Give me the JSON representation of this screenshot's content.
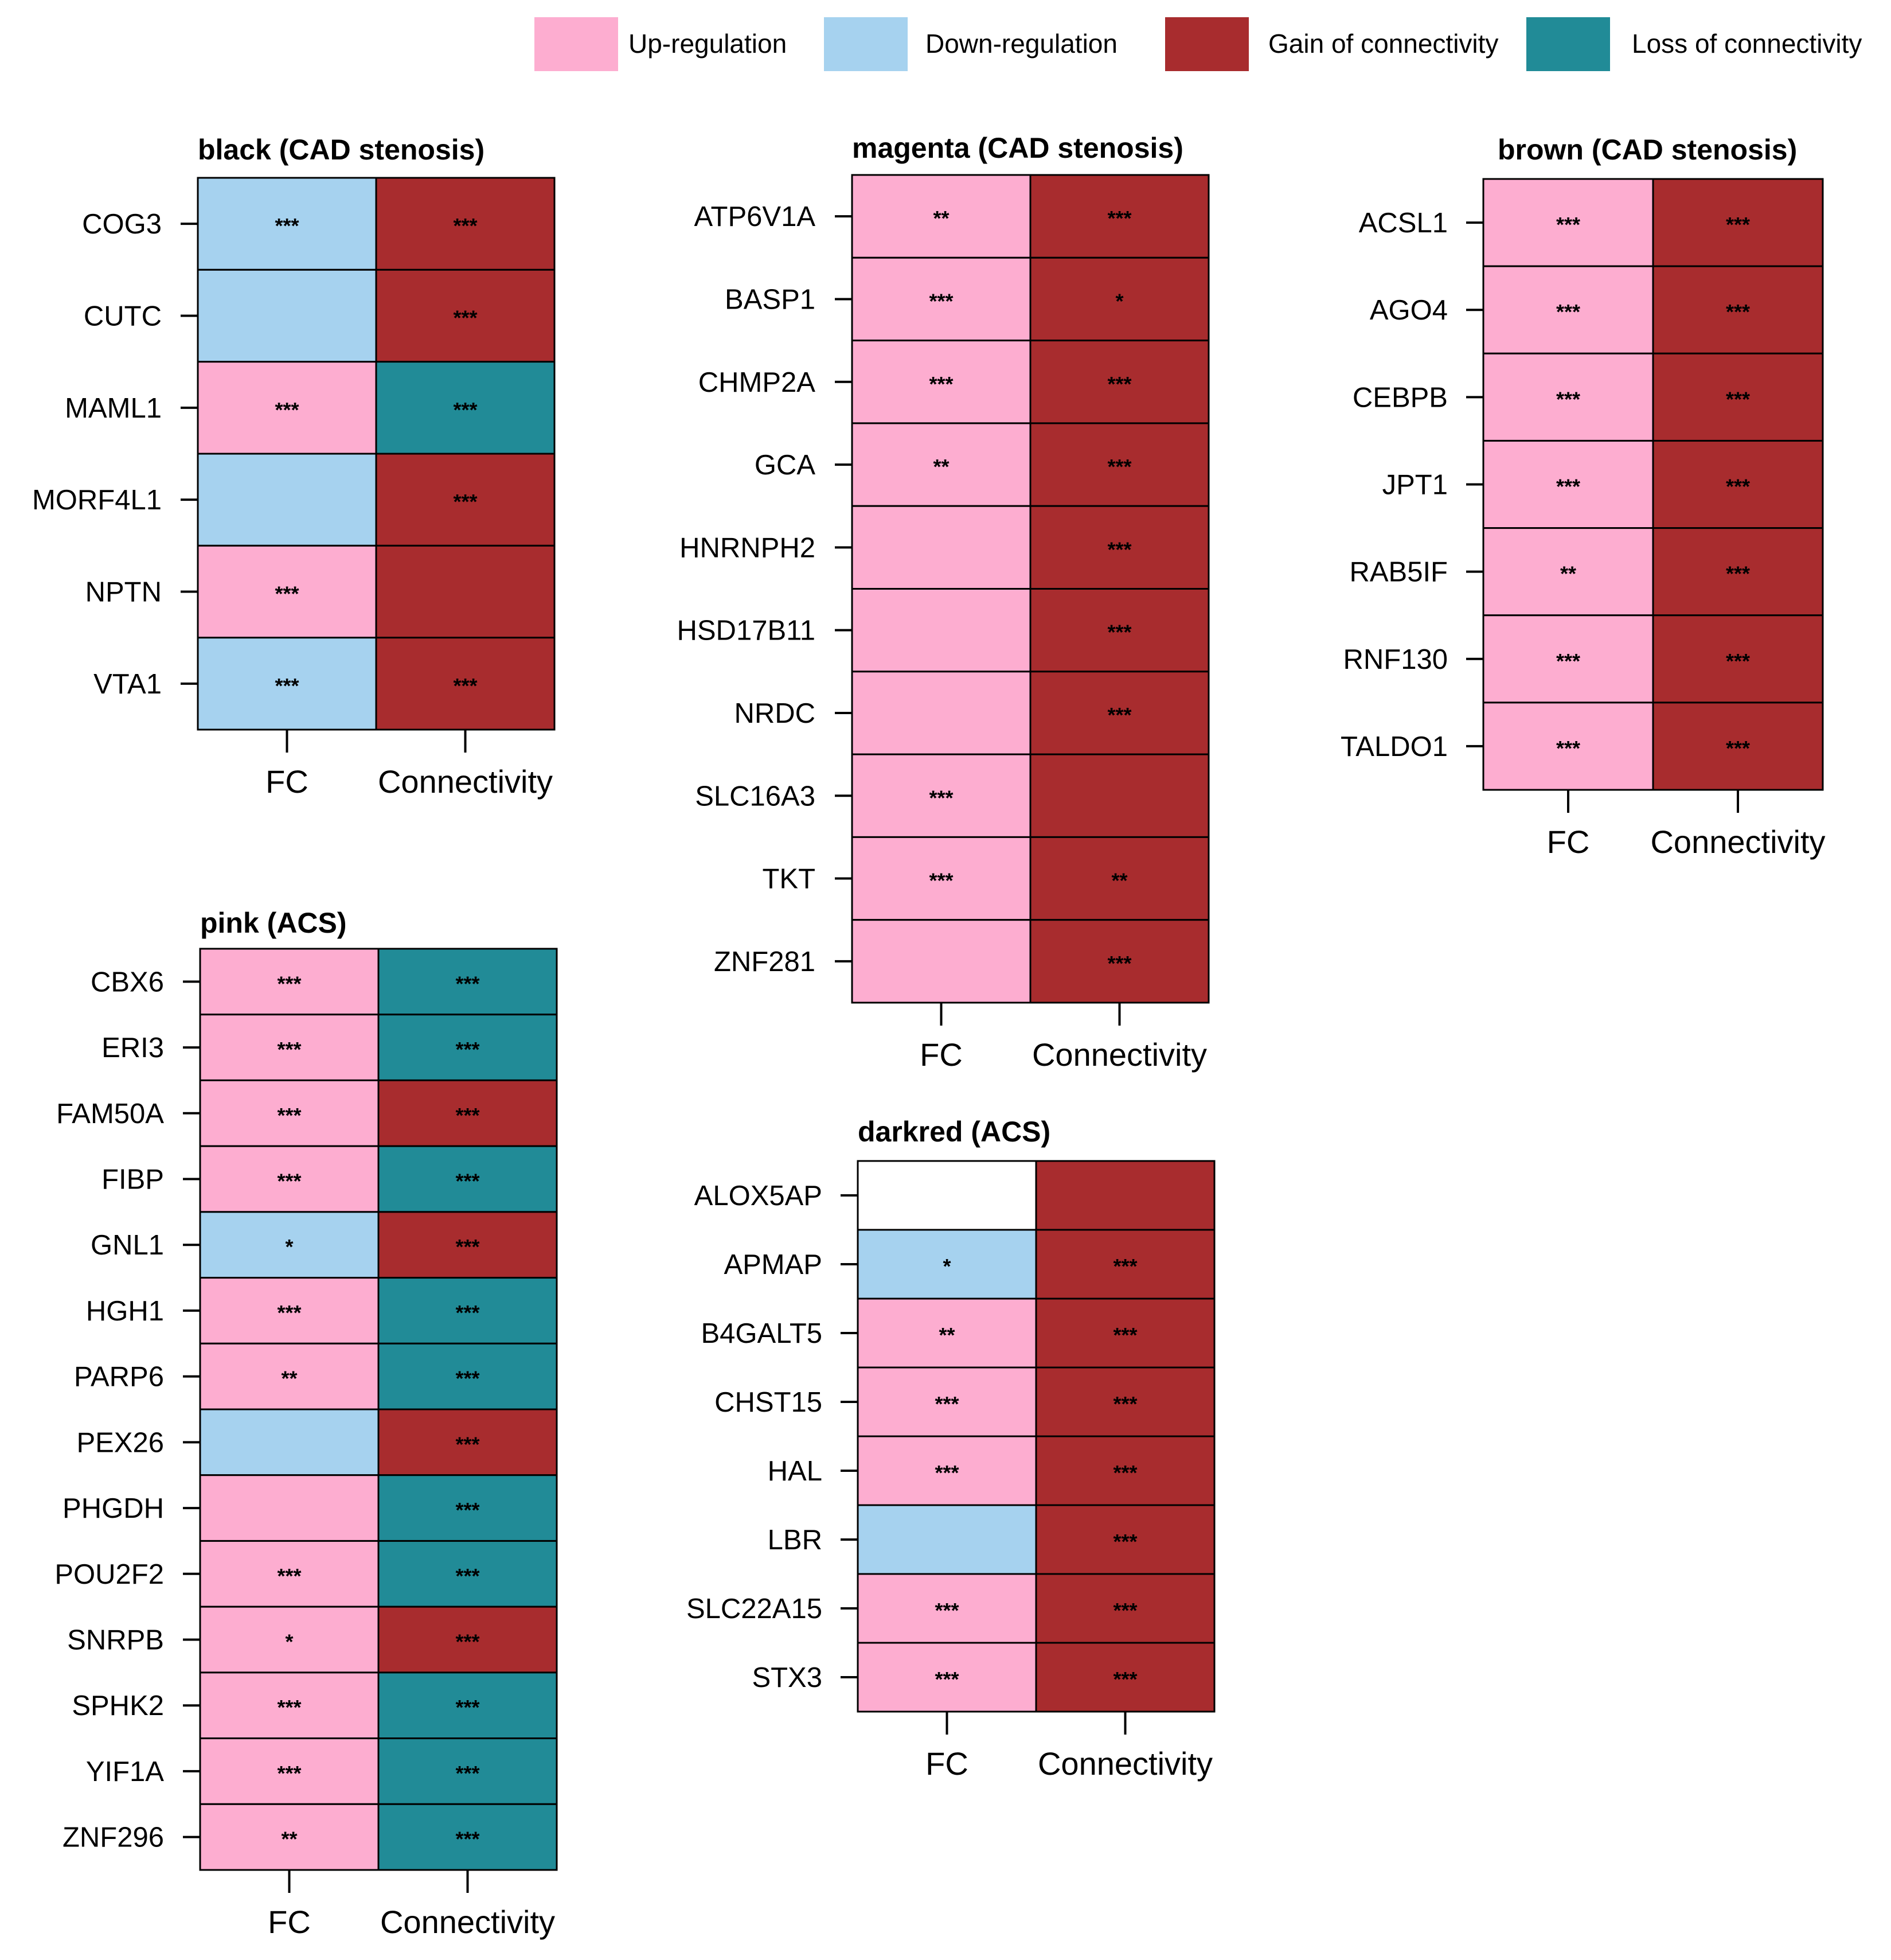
{
  "colors": {
    "up": "#fdadd0",
    "down": "#a6d2ef",
    "gain": "#a82c2e",
    "loss": "#218b97",
    "none": "#ffffff"
  },
  "legend": [
    {
      "label": "Up-regulation",
      "key": "up"
    },
    {
      "label": "Down-regulation",
      "key": "down"
    },
    {
      "label": "Gain of connectivity",
      "key": "gain"
    },
    {
      "label": "Loss of connectivity",
      "key": "loss"
    }
  ],
  "chart_data": [
    {
      "type": "heatmap",
      "title": "black (CAD stenosis)",
      "columns": [
        "FC",
        "Connectivity"
      ],
      "rows": [
        {
          "gene": "COG3",
          "fc": "down",
          "fc_sig": "***",
          "conn": "gain",
          "conn_sig": "***"
        },
        {
          "gene": "CUTC",
          "fc": "down",
          "fc_sig": "",
          "conn": "gain",
          "conn_sig": "***"
        },
        {
          "gene": "MAML1",
          "fc": "up",
          "fc_sig": "***",
          "conn": "loss",
          "conn_sig": "***"
        },
        {
          "gene": "MORF4L1",
          "fc": "down",
          "fc_sig": "",
          "conn": "gain",
          "conn_sig": "***"
        },
        {
          "gene": "NPTN",
          "fc": "up",
          "fc_sig": "***",
          "conn": "gain",
          "conn_sig": ""
        },
        {
          "gene": "VTA1",
          "fc": "down",
          "fc_sig": "***",
          "conn": "gain",
          "conn_sig": "***"
        }
      ]
    },
    {
      "type": "heatmap",
      "title": "magenta (CAD stenosis)",
      "columns": [
        "FC",
        "Connectivity"
      ],
      "rows": [
        {
          "gene": "ATP6V1A",
          "fc": "up",
          "fc_sig": "**",
          "conn": "gain",
          "conn_sig": "***"
        },
        {
          "gene": "BASP1",
          "fc": "up",
          "fc_sig": "***",
          "conn": "gain",
          "conn_sig": "*"
        },
        {
          "gene": "CHMP2A",
          "fc": "up",
          "fc_sig": "***",
          "conn": "gain",
          "conn_sig": "***"
        },
        {
          "gene": "GCA",
          "fc": "up",
          "fc_sig": "**",
          "conn": "gain",
          "conn_sig": "***"
        },
        {
          "gene": "HNRNPH2",
          "fc": "up",
          "fc_sig": "",
          "conn": "gain",
          "conn_sig": "***"
        },
        {
          "gene": "HSD17B11",
          "fc": "up",
          "fc_sig": "",
          "conn": "gain",
          "conn_sig": "***"
        },
        {
          "gene": "NRDC",
          "fc": "up",
          "fc_sig": "",
          "conn": "gain",
          "conn_sig": "***"
        },
        {
          "gene": "SLC16A3",
          "fc": "up",
          "fc_sig": "***",
          "conn": "gain",
          "conn_sig": ""
        },
        {
          "gene": "TKT",
          "fc": "up",
          "fc_sig": "***",
          "conn": "gain",
          "conn_sig": "**"
        },
        {
          "gene": "ZNF281",
          "fc": "up",
          "fc_sig": "",
          "conn": "gain",
          "conn_sig": "***"
        }
      ]
    },
    {
      "type": "heatmap",
      "title": "brown (CAD stenosis)",
      "columns": [
        "FC",
        "Connectivity"
      ],
      "rows": [
        {
          "gene": "ACSL1",
          "fc": "up",
          "fc_sig": "***",
          "conn": "gain",
          "conn_sig": "***"
        },
        {
          "gene": "AGO4",
          "fc": "up",
          "fc_sig": "***",
          "conn": "gain",
          "conn_sig": "***"
        },
        {
          "gene": "CEBPB",
          "fc": "up",
          "fc_sig": "***",
          "conn": "gain",
          "conn_sig": "***"
        },
        {
          "gene": "JPT1",
          "fc": "up",
          "fc_sig": "***",
          "conn": "gain",
          "conn_sig": "***"
        },
        {
          "gene": "RAB5IF",
          "fc": "up",
          "fc_sig": "**",
          "conn": "gain",
          "conn_sig": "***"
        },
        {
          "gene": "RNF130",
          "fc": "up",
          "fc_sig": "***",
          "conn": "gain",
          "conn_sig": "***"
        },
        {
          "gene": "TALDO1",
          "fc": "up",
          "fc_sig": "***",
          "conn": "gain",
          "conn_sig": "***"
        }
      ]
    },
    {
      "type": "heatmap",
      "title": "pink (ACS)",
      "columns": [
        "FC",
        "Connectivity"
      ],
      "rows": [
        {
          "gene": "CBX6",
          "fc": "up",
          "fc_sig": "***",
          "conn": "loss",
          "conn_sig": "***"
        },
        {
          "gene": "ERI3",
          "fc": "up",
          "fc_sig": "***",
          "conn": "loss",
          "conn_sig": "***"
        },
        {
          "gene": "FAM50A",
          "fc": "up",
          "fc_sig": "***",
          "conn": "gain",
          "conn_sig": "***"
        },
        {
          "gene": "FIBP",
          "fc": "up",
          "fc_sig": "***",
          "conn": "loss",
          "conn_sig": "***"
        },
        {
          "gene": "GNL1",
          "fc": "down",
          "fc_sig": "*",
          "conn": "gain",
          "conn_sig": "***"
        },
        {
          "gene": "HGH1",
          "fc": "up",
          "fc_sig": "***",
          "conn": "loss",
          "conn_sig": "***"
        },
        {
          "gene": "PARP6",
          "fc": "up",
          "fc_sig": "**",
          "conn": "loss",
          "conn_sig": "***"
        },
        {
          "gene": "PEX26",
          "fc": "down",
          "fc_sig": "",
          "conn": "gain",
          "conn_sig": "***"
        },
        {
          "gene": "PHGDH",
          "fc": "up",
          "fc_sig": "",
          "conn": "loss",
          "conn_sig": "***"
        },
        {
          "gene": "POU2F2",
          "fc": "up",
          "fc_sig": "***",
          "conn": "loss",
          "conn_sig": "***"
        },
        {
          "gene": "SNRPB",
          "fc": "up",
          "fc_sig": "*",
          "conn": "gain",
          "conn_sig": "***"
        },
        {
          "gene": "SPHK2",
          "fc": "up",
          "fc_sig": "***",
          "conn": "loss",
          "conn_sig": "***"
        },
        {
          "gene": "YIF1A",
          "fc": "up",
          "fc_sig": "***",
          "conn": "loss",
          "conn_sig": "***"
        },
        {
          "gene": "ZNF296",
          "fc": "up",
          "fc_sig": "**",
          "conn": "loss",
          "conn_sig": "***"
        }
      ]
    },
    {
      "type": "heatmap",
      "title": "darkred (ACS)",
      "columns": [
        "FC",
        "Connectivity"
      ],
      "rows": [
        {
          "gene": "ALOX5AP",
          "fc": "none",
          "fc_sig": "",
          "conn": "gain",
          "conn_sig": ""
        },
        {
          "gene": "APMAP",
          "fc": "down",
          "fc_sig": "*",
          "conn": "gain",
          "conn_sig": "***"
        },
        {
          "gene": "B4GALT5",
          "fc": "up",
          "fc_sig": "**",
          "conn": "gain",
          "conn_sig": "***"
        },
        {
          "gene": "CHST15",
          "fc": "up",
          "fc_sig": "***",
          "conn": "gain",
          "conn_sig": "***"
        },
        {
          "gene": "HAL",
          "fc": "up",
          "fc_sig": "***",
          "conn": "gain",
          "conn_sig": "***"
        },
        {
          "gene": "LBR",
          "fc": "down",
          "fc_sig": "",
          "conn": "gain",
          "conn_sig": "***"
        },
        {
          "gene": "SLC22A15",
          "fc": "up",
          "fc_sig": "***",
          "conn": "gain",
          "conn_sig": "***"
        },
        {
          "gene": "STX3",
          "fc": "up",
          "fc_sig": "***",
          "conn": "gain",
          "conn_sig": "***"
        }
      ]
    }
  ]
}
